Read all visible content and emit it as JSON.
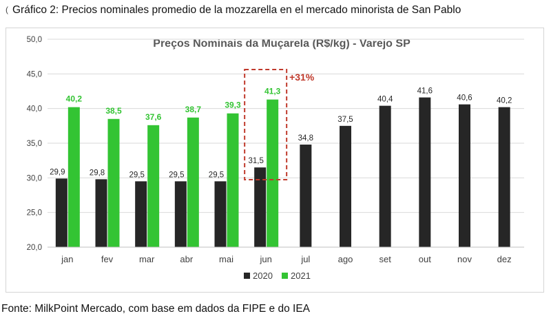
{
  "caption": "Gráfico 2: Precios nominales promedio de la mozzarella en el mercado minorista de San Pablo",
  "caption_bullet": "(",
  "source": "Fonte: MilkPoint Mercado, com base em dados da FIPE e do IEA",
  "chart_data": {
    "type": "bar",
    "title": "Preços Nominais da Muçarela  (R$/kg) - Varejo SP",
    "xlabel": "",
    "ylabel": "",
    "categories": [
      "jan",
      "fev",
      "mar",
      "abr",
      "mai",
      "jun",
      "jul",
      "ago",
      "set",
      "out",
      "nov",
      "dez"
    ],
    "series": [
      {
        "name": "2020",
        "color": "#262626",
        "values": [
          29.9,
          29.8,
          29.5,
          29.5,
          29.5,
          31.5,
          34.8,
          37.5,
          40.4,
          41.6,
          40.6,
          40.2
        ]
      },
      {
        "name": "2021",
        "color": "#33c433",
        "values": [
          40.2,
          38.5,
          37.6,
          38.7,
          39.3,
          41.3,
          null,
          null,
          null,
          null,
          null,
          null
        ]
      }
    ],
    "ylim": [
      20,
      50
    ],
    "yticks": [
      "20,0",
      "25,0",
      "30,0",
      "35,0",
      "40,0",
      "45,0",
      "50,0"
    ],
    "grid": true,
    "legend": "bottom-center",
    "annotation": {
      "text": "+31%",
      "category": "jun",
      "color": "#c0392b"
    }
  }
}
